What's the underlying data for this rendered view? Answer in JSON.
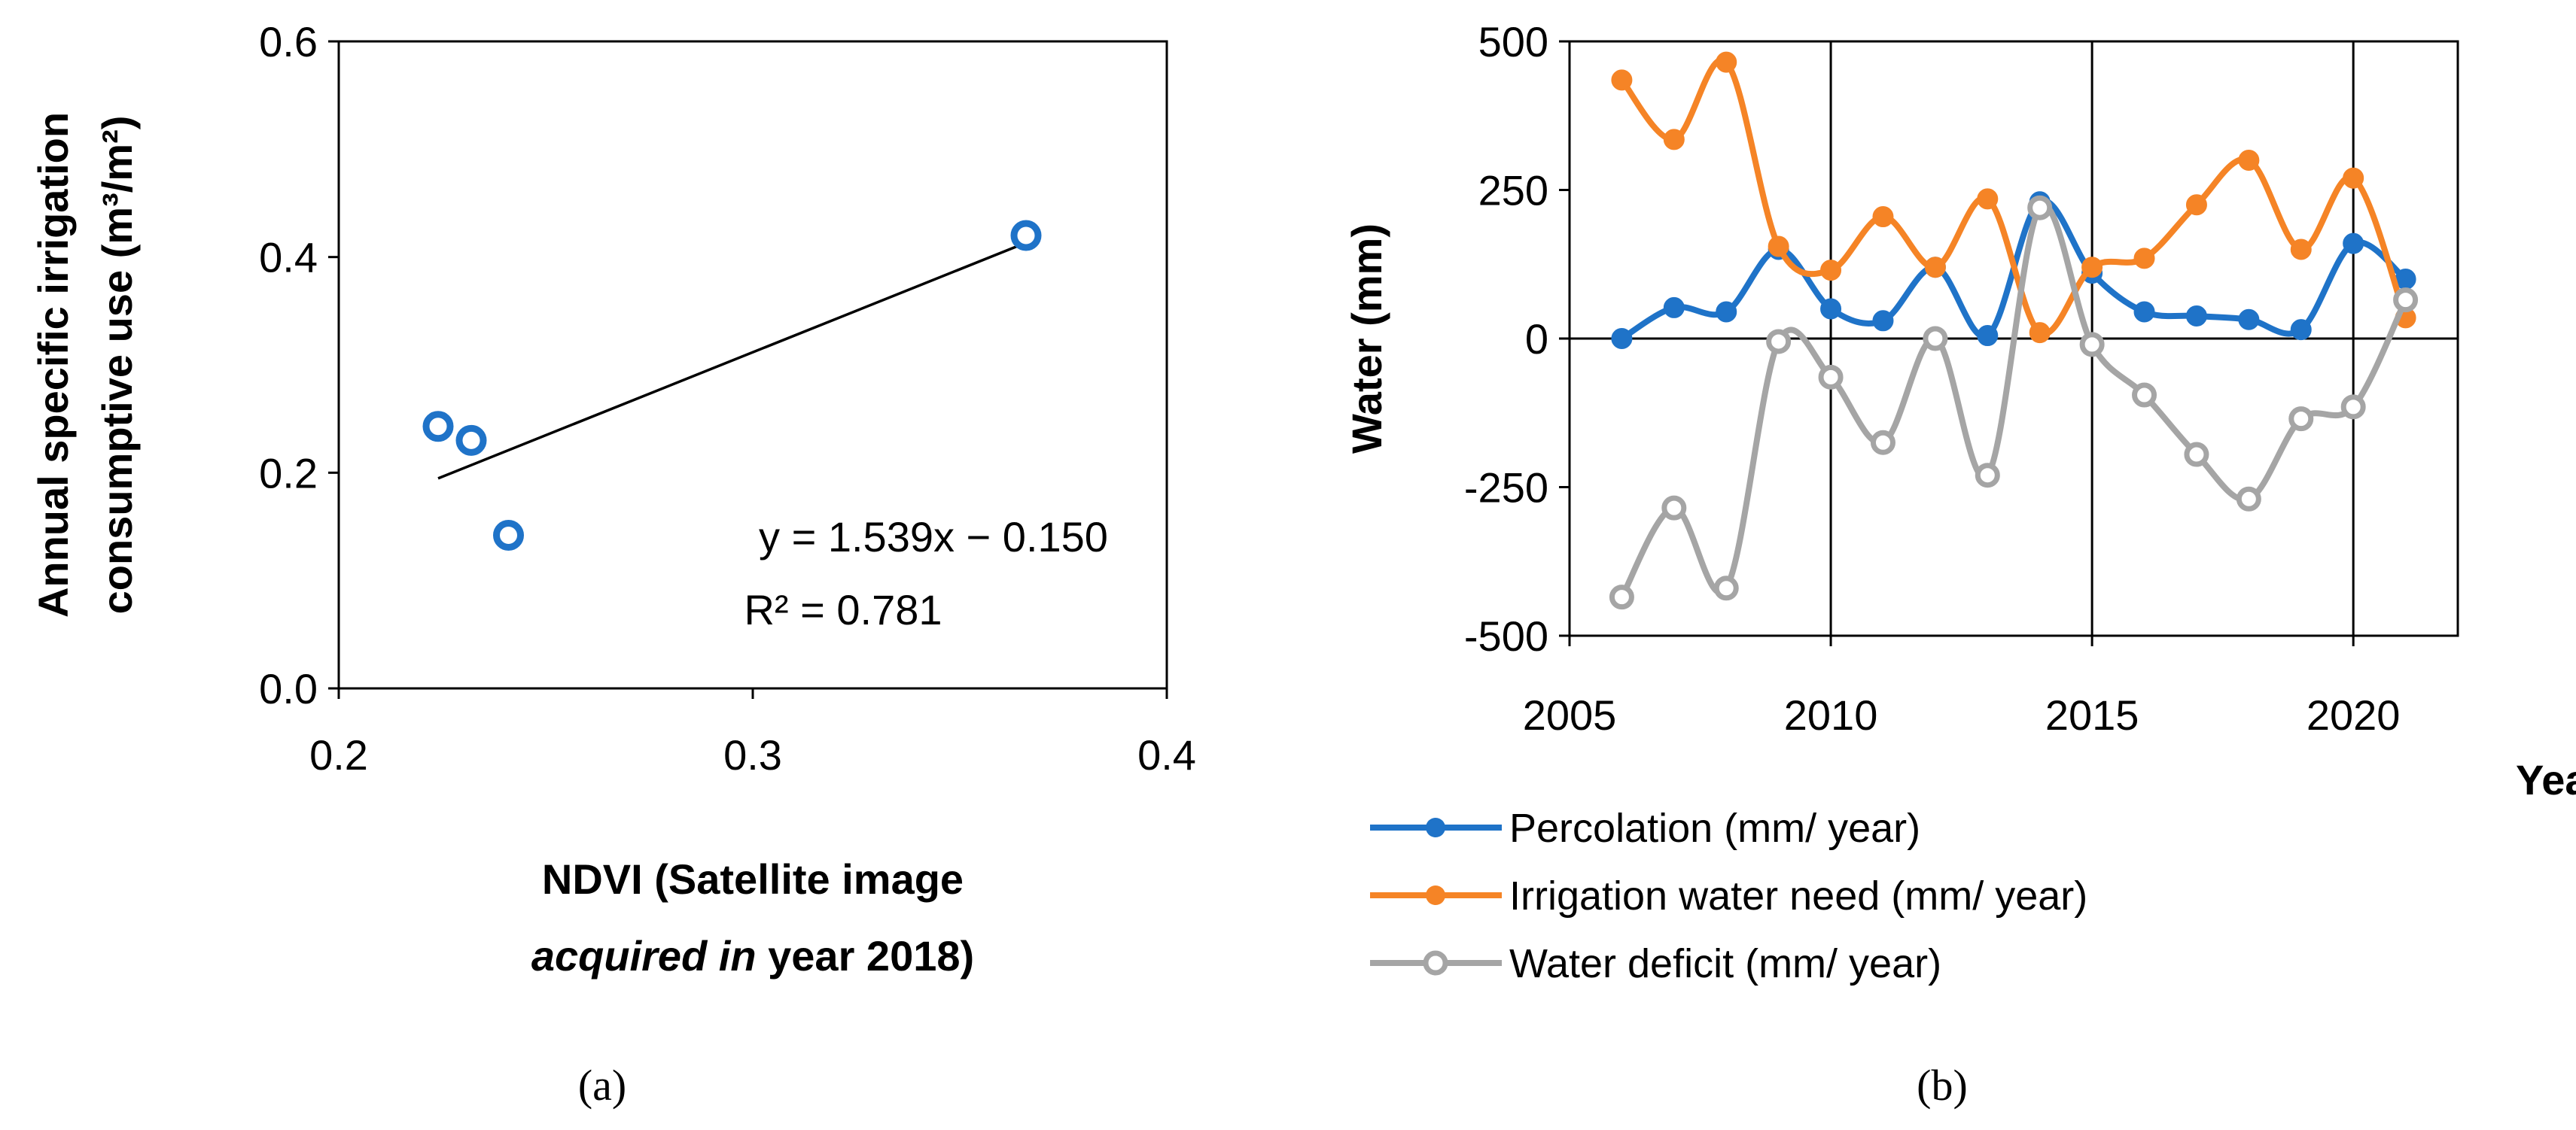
{
  "chart_data": [
    {
      "type": "scatter",
      "panel_label": "(a)",
      "xlabel_line1": "NDVI (Satellite image",
      "xlabel_line2_italic": "acquired in",
      "xlabel_line2_rest": " year 2018)",
      "ylabel_line1": "Annual  specific irrigation",
      "ylabel_line2": "consumptive use (m³/m²)",
      "xlim": [
        0.2,
        0.4
      ],
      "ylim": [
        0.0,
        0.6
      ],
      "xticks": [
        "0.2",
        "0.3",
        "0.4"
      ],
      "yticks": [
        "0.0",
        "0.2",
        "0.4",
        "0.6"
      ],
      "points": [
        {
          "x": 0.224,
          "y": 0.243
        },
        {
          "x": 0.232,
          "y": 0.23
        },
        {
          "x": 0.241,
          "y": 0.142
        },
        {
          "x": 0.366,
          "y": 0.42
        }
      ],
      "trendline": {
        "slope": 1.539,
        "intercept": -0.15,
        "x_start": 0.224,
        "x_end": 0.366
      },
      "equation": "y = 1.539x − 0.150",
      "r_squared": "R² = 0.781",
      "marker_color": "#1F73C8"
    },
    {
      "type": "line",
      "panel_label": "(b)",
      "ylabel": "Water (mm)",
      "xlabel": "Year",
      "xlim": [
        2005,
        2022
      ],
      "ylim": [
        -500,
        500
      ],
      "xticks": [
        "2005",
        "2010",
        "2015",
        "2020"
      ],
      "yticks": [
        "500",
        "250",
        "0",
        "-250",
        "-500"
      ],
      "x": [
        2006,
        2007,
        2008,
        2009,
        2010,
        2011,
        2012,
        2013,
        2014,
        2015,
        2016,
        2017,
        2018,
        2019,
        2020,
        2021
      ],
      "series": [
        {
          "name": "Percolation (mm/ year)",
          "color": "#1F73C8",
          "marker": "filled",
          "values": [
            0,
            52,
            45,
            150,
            50,
            30,
            120,
            5,
            230,
            110,
            45,
            38,
            32,
            15,
            160,
            100
          ]
        },
        {
          "name": "Irrigation water need (mm/ year)",
          "color": "#F58426",
          "marker": "filled",
          "values": [
            435,
            335,
            465,
            155,
            115,
            205,
            120,
            235,
            10,
            120,
            135,
            225,
            300,
            150,
            270,
            35
          ]
        },
        {
          "name": "Water deficit (mm/ year)",
          "color": "#A5A5A5",
          "marker": "hollow",
          "values": [
            -435,
            -285,
            -420,
            -5,
            -65,
            -175,
            0,
            -230,
            220,
            -10,
            -95,
            -195,
            -270,
            -135,
            -115,
            65
          ]
        }
      ]
    }
  ]
}
